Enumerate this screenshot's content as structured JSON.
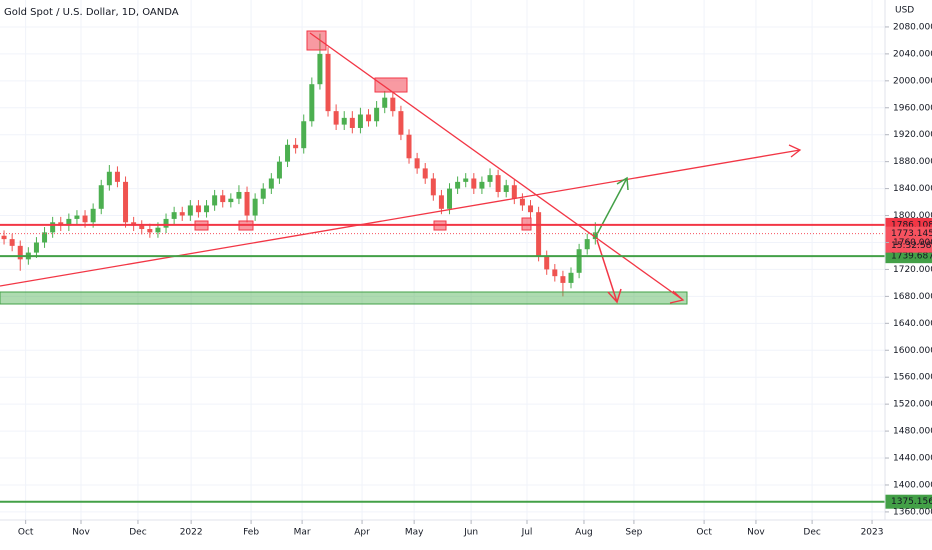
{
  "chart_data": {
    "type": "candlestick",
    "title": "Gold Spot / U.S. Dollar, 1D, OANDA",
    "y_unit": "USD",
    "up_color": "#4caf50",
    "down_color": "#ef5350",
    "grid": true,
    "xlim": [
      -1.5,
      326.3
    ],
    "xticks": [
      {
        "value": 8,
        "label": "Oct"
      },
      {
        "value": 28.5,
        "label": "Nov"
      },
      {
        "value": 49.6,
        "label": "Dec"
      },
      {
        "value": 69.3,
        "label": "2022"
      },
      {
        "value": 91.5,
        "label": "Feb"
      },
      {
        "value": 110.4,
        "label": "Mar"
      },
      {
        "value": 132.6,
        "label": "Apr"
      },
      {
        "value": 151.9,
        "label": "May"
      },
      {
        "value": 173,
        "label": "Jun"
      },
      {
        "value": 193.7,
        "label": "Jul"
      },
      {
        "value": 214.8,
        "label": "Aug"
      },
      {
        "value": 233.3,
        "label": "Sep"
      },
      {
        "value": 259.3,
        "label": "Oct"
      },
      {
        "value": 278.5,
        "label": "Nov"
      },
      {
        "value": 299.3,
        "label": "Dec"
      },
      {
        "value": 321.5,
        "label": "2023"
      }
    ],
    "ylim": [
      1348,
      2120
    ],
    "yticks": [
      {
        "value": 1360,
        "label": "1360.000"
      },
      {
        "value": 1400,
        "label": "1400.000"
      },
      {
        "value": 1440,
        "label": "1440.000"
      },
      {
        "value": 1480,
        "label": "1480.000"
      },
      {
        "value": 1520,
        "label": "1520.000"
      },
      {
        "value": 1560,
        "label": "1560.000"
      },
      {
        "value": 1600,
        "label": "1600.000"
      },
      {
        "value": 1640,
        "label": "1640.000"
      },
      {
        "value": 1680,
        "label": "1680.000"
      },
      {
        "value": 1720,
        "label": "1720.000"
      },
      {
        "value": 1760,
        "label": "1760.000"
      },
      {
        "value": 1800,
        "label": "1800.000"
      },
      {
        "value": 1840,
        "label": "1840.000"
      },
      {
        "value": 1880,
        "label": "1880.000"
      },
      {
        "value": 1920,
        "label": "1920.000"
      },
      {
        "value": 1960,
        "label": "1960.000"
      },
      {
        "value": 2000,
        "label": "2000.000"
      },
      {
        "value": 2040,
        "label": "2040.000"
      },
      {
        "value": 2080,
        "label": "2080.000"
      }
    ],
    "x": [
      0,
      3,
      6,
      9,
      12,
      15,
      18,
      21,
      24,
      27,
      30,
      33,
      36,
      39,
      42,
      45,
      48,
      51,
      54,
      57,
      60,
      63,
      66,
      69,
      72,
      75,
      78,
      81,
      84,
      87,
      90,
      93,
      96,
      99,
      102,
      105,
      108,
      111,
      114,
      117,
      120,
      123,
      126,
      129,
      132,
      135,
      138,
      141,
      144,
      147,
      150,
      153,
      156,
      159,
      162,
      165,
      168,
      171,
      174,
      177,
      180,
      183,
      186,
      189,
      192,
      195,
      198,
      201,
      204,
      207,
      210,
      213,
      216,
      219
    ],
    "open": [
      1770,
      1765,
      1755,
      1735,
      1745,
      1760,
      1775,
      1790,
      1785,
      1795,
      1800,
      1790,
      1810,
      1845,
      1865,
      1850,
      1790,
      1785,
      1780,
      1775,
      1782,
      1795,
      1805,
      1800,
      1815,
      1805,
      1815,
      1830,
      1820,
      1825,
      1835,
      1800,
      1825,
      1840,
      1855,
      1880,
      1905,
      1900,
      1940,
      1995,
      2040,
      1955,
      1935,
      1945,
      1930,
      1950,
      1940,
      1960,
      1975,
      1955,
      1920,
      1885,
      1870,
      1855,
      1830,
      1810,
      1840,
      1850,
      1855,
      1840,
      1850,
      1860,
      1835,
      1845,
      1825,
      1815,
      1805,
      1740,
      1720,
      1710,
      1700,
      1715,
      1750,
      1765
    ],
    "high": [
      1778,
      1773,
      1763,
      1753,
      1768,
      1783,
      1798,
      1798,
      1803,
      1808,
      1808,
      1818,
      1853,
      1875,
      1873,
      1858,
      1798,
      1793,
      1788,
      1790,
      1803,
      1813,
      1813,
      1823,
      1823,
      1823,
      1838,
      1838,
      1833,
      1845,
      1843,
      1833,
      1848,
      1863,
      1888,
      1913,
      1915,
      1950,
      2005,
      2070,
      2050,
      1965,
      1955,
      1955,
      1960,
      1958,
      1970,
      1985,
      1983,
      1963,
      1928,
      1893,
      1878,
      1863,
      1838,
      1848,
      1858,
      1863,
      1863,
      1858,
      1870,
      1868,
      1853,
      1853,
      1833,
      1823,
      1813,
      1748,
      1728,
      1718,
      1723,
      1758,
      1773,
      1790
    ],
    "low": [
      1757,
      1747,
      1718,
      1727,
      1737,
      1752,
      1767,
      1777,
      1777,
      1787,
      1782,
      1782,
      1802,
      1837,
      1842,
      1782,
      1777,
      1772,
      1767,
      1767,
      1774,
      1787,
      1792,
      1792,
      1797,
      1797,
      1807,
      1812,
      1812,
      1817,
      1790,
      1792,
      1817,
      1832,
      1847,
      1872,
      1892,
      1892,
      1932,
      1987,
      1947,
      1927,
      1927,
      1922,
      1922,
      1932,
      1932,
      1952,
      1947,
      1912,
      1877,
      1862,
      1847,
      1822,
      1802,
      1802,
      1832,
      1842,
      1832,
      1832,
      1842,
      1827,
      1827,
      1817,
      1807,
      1797,
      1732,
      1712,
      1702,
      1680,
      1692,
      1707,
      1742,
      1757
    ],
    "close": [
      1765,
      1755,
      1735,
      1745,
      1760,
      1775,
      1790,
      1785,
      1795,
      1800,
      1790,
      1810,
      1845,
      1865,
      1850,
      1790,
      1785,
      1780,
      1775,
      1782,
      1795,
      1805,
      1800,
      1815,
      1805,
      1815,
      1830,
      1820,
      1825,
      1835,
      1800,
      1825,
      1840,
      1855,
      1880,
      1905,
      1900,
      1940,
      1995,
      2040,
      1955,
      1935,
      1945,
      1930,
      1950,
      1940,
      1960,
      1975,
      1955,
      1920,
      1885,
      1870,
      1855,
      1830,
      1810,
      1840,
      1850,
      1855,
      1840,
      1850,
      1860,
      1835,
      1845,
      1825,
      1815,
      1805,
      1740,
      1720,
      1710,
      1700,
      1715,
      1750,
      1765,
      1775
    ],
    "levels": [
      {
        "value": 1786.108,
        "color": "#f23645"
      },
      {
        "value": 1739.687,
        "color": "#43a047"
      },
      {
        "value": 1375.156,
        "color": "#43a047"
      }
    ],
    "last_price": 1773.145,
    "last_color": "#f7525f",
    "countdown": "15:32:58"
  }
}
